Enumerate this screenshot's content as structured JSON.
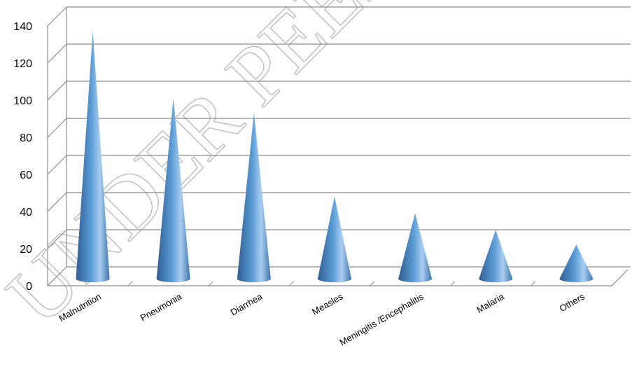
{
  "watermark": "UNDER PEER",
  "chart_data": {
    "type": "bar",
    "style": "3d-cone",
    "categories": [
      "Malnutrition",
      "Pneumonia",
      "Diarrhea",
      "Measles",
      "Meningitis /Encephalitis",
      "Malaria",
      "Others"
    ],
    "values": [
      133,
      97,
      89,
      44,
      35,
      26,
      18
    ],
    "title": "",
    "xlabel": "",
    "ylabel": "",
    "ylim": [
      0,
      140
    ],
    "yticks": [
      "0",
      "20",
      "40",
      "60",
      "80",
      "100",
      "120",
      "140"
    ],
    "grid": true,
    "legend": "none",
    "colors": {
      "cone_dark": "#2e5d94",
      "cone_mid": "#5b9bd5",
      "cone_light": "#a9cdf0",
      "grid": "#8c8c8c"
    }
  }
}
